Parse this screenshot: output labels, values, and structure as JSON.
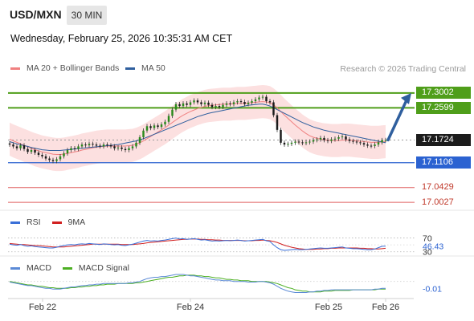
{
  "header": {
    "symbol": "USD/MXN",
    "timeframe": "30 MIN",
    "datetime": "Wednesday, February 25, 2026 10:35:31 AM CET"
  },
  "legend": {
    "ma20_label": "MA 20 + Bollinger Bands",
    "ma20_color": "#f08080",
    "ma50_label": "MA 50",
    "ma50_color": "#2f5f9e",
    "credit": "Research © 2026 Trading Central"
  },
  "rsi_legend": {
    "rsi_label": "RSI",
    "rsi_color": "#3a6fd8",
    "ma_label": "9MA",
    "ma_color": "#d12020"
  },
  "macd_legend": {
    "macd_label": "MACD",
    "macd_color": "#5b8ad6",
    "signal_label": "MACD Signal",
    "signal_color": "#4caf22"
  },
  "chart_data": [
    {
      "type": "candlestick",
      "title": "USD/MXN 30 MIN",
      "x_ticks": [
        "Feb 22",
        "Feb 24",
        "Feb 25",
        "Feb 26"
      ],
      "ylim": [
        16.99,
        17.335
      ],
      "levels": [
        {
          "value": 17.3002,
          "label": "17.3002",
          "color": "#4f9e1a",
          "kind": "resistance"
        },
        {
          "value": 17.2599,
          "label": "17.2599",
          "color": "#4f9e1a",
          "kind": "resistance"
        },
        {
          "value": 17.1724,
          "label": "17.1724",
          "color": "#1c1c1c",
          "kind": "last"
        },
        {
          "value": 17.1106,
          "label": "17.1106",
          "color": "#2b62d1",
          "kind": "support"
        },
        {
          "value": 17.0429,
          "label": "17.0429",
          "color": "#e06060",
          "kind": "support"
        },
        {
          "value": 17.0027,
          "label": "17.0027",
          "color": "#e06060",
          "kind": "support"
        }
      ],
      "close": [
        17.16,
        17.155,
        17.15,
        17.158,
        17.148,
        17.14,
        17.145,
        17.138,
        17.132,
        17.128,
        17.122,
        17.118,
        17.115,
        17.12,
        17.128,
        17.136,
        17.145,
        17.15,
        17.148,
        17.155,
        17.16,
        17.158,
        17.162,
        17.16,
        17.157,
        17.155,
        17.16,
        17.158,
        17.155,
        17.15,
        17.152,
        17.148,
        17.145,
        17.15,
        17.155,
        17.165,
        17.18,
        17.198,
        17.21,
        17.205,
        17.212,
        17.208,
        17.215,
        17.222,
        17.238,
        17.255,
        17.27,
        17.265,
        17.272,
        17.268,
        17.275,
        17.28,
        17.275,
        17.27,
        17.274,
        17.268,
        17.262,
        17.265,
        17.262,
        17.268,
        17.272,
        17.27,
        17.275,
        17.278,
        17.276,
        17.27,
        17.274,
        17.278,
        17.283,
        17.288,
        17.29,
        17.278,
        17.275,
        17.24,
        17.2,
        17.165,
        17.16,
        17.162,
        17.165,
        17.168,
        17.166,
        17.164,
        17.166,
        17.168,
        17.172,
        17.174,
        17.178,
        17.172,
        17.17,
        17.174,
        17.176,
        17.18,
        17.182,
        17.174,
        17.17,
        17.168,
        17.166,
        17.164,
        17.16,
        17.157,
        17.156,
        17.16,
        17.166,
        17.172,
        17.1724
      ],
      "ma20": [
        17.175,
        17.17,
        17.166,
        17.162,
        17.158,
        17.154,
        17.15,
        17.146,
        17.143,
        17.14,
        17.138,
        17.136,
        17.134,
        17.133,
        17.133,
        17.134,
        17.136,
        17.138,
        17.14,
        17.142,
        17.145,
        17.147,
        17.149,
        17.151,
        17.153,
        17.154,
        17.155,
        17.156,
        17.156,
        17.156,
        17.156,
        17.156,
        17.156,
        17.157,
        17.158,
        17.161,
        17.165,
        17.17,
        17.176,
        17.182,
        17.188,
        17.194,
        17.2,
        17.206,
        17.213,
        17.22,
        17.227,
        17.234,
        17.24,
        17.245,
        17.25,
        17.254,
        17.258,
        17.261,
        17.264,
        17.266,
        17.267,
        17.268,
        17.269,
        17.27,
        17.27,
        17.27,
        17.271,
        17.272,
        17.272,
        17.272,
        17.273,
        17.274,
        17.275,
        17.276,
        17.277,
        17.276,
        17.274,
        17.268,
        17.26,
        17.25,
        17.24,
        17.231,
        17.222,
        17.213,
        17.205,
        17.197,
        17.19,
        17.184,
        17.18,
        17.177,
        17.175,
        17.173,
        17.172,
        17.171,
        17.171,
        17.171,
        17.172,
        17.172,
        17.172,
        17.171,
        17.17,
        17.169,
        17.168,
        17.167,
        17.166,
        17.166,
        17.166,
        17.167,
        17.168
      ],
      "ma50": [
        17.168,
        17.165,
        17.162,
        17.16,
        17.157,
        17.155,
        17.152,
        17.15,
        17.148,
        17.146,
        17.145,
        17.144,
        17.144,
        17.144,
        17.144,
        17.145,
        17.146,
        17.147,
        17.148,
        17.149,
        17.15,
        17.151,
        17.152,
        17.153,
        17.154,
        17.155,
        17.156,
        17.157,
        17.158,
        17.159,
        17.16,
        17.162,
        17.164,
        17.166,
        17.168,
        17.17,
        17.173,
        17.176,
        17.18,
        17.184,
        17.188,
        17.192,
        17.196,
        17.2,
        17.204,
        17.208,
        17.212,
        17.216,
        17.22,
        17.224,
        17.228,
        17.232,
        17.236,
        17.239,
        17.242,
        17.245,
        17.247,
        17.249,
        17.251,
        17.253,
        17.255,
        17.257,
        17.259,
        17.261,
        17.263,
        17.265,
        17.267,
        17.268,
        17.269,
        17.27,
        17.27,
        17.268,
        17.265,
        17.26,
        17.255,
        17.25,
        17.245,
        17.24,
        17.235,
        17.23,
        17.225,
        17.22,
        17.216,
        17.212,
        17.208,
        17.205,
        17.202,
        17.199,
        17.197,
        17.195,
        17.193,
        17.191,
        17.189,
        17.187,
        17.185,
        17.183,
        17.181,
        17.179,
        17.177,
        17.175,
        17.173,
        17.171,
        17.169,
        17.167,
        17.165
      ],
      "forecast_arrow_to": 17.3002
    },
    {
      "type": "line",
      "title": "RSI",
      "ref_levels": [
        70,
        30
      ],
      "ylim": [
        20,
        90
      ],
      "last_value": "46.43",
      "series": [
        {
          "name": "RSI",
          "values": [
            52,
            50,
            49,
            51,
            48,
            46,
            47,
            45,
            44,
            43,
            42,
            41,
            41,
            43,
            46,
            48,
            50,
            51,
            50,
            52,
            53,
            52,
            54,
            53,
            52,
            51,
            53,
            52,
            51,
            50,
            51,
            49,
            48,
            50,
            52,
            55,
            58,
            61,
            63,
            61,
            62,
            61,
            63,
            64,
            66,
            68,
            70,
            67,
            68,
            66,
            67,
            68,
            66,
            64,
            65,
            63,
            61,
            62,
            61,
            62,
            63,
            62,
            63,
            64,
            63,
            61,
            62,
            63,
            64,
            65,
            66,
            62,
            60,
            50,
            42,
            36,
            34,
            35,
            36,
            37,
            36,
            36,
            37,
            38,
            39,
            40,
            41,
            40,
            40,
            41,
            42,
            43,
            44,
            41,
            40,
            39,
            39,
            38,
            37,
            36,
            36,
            38,
            42,
            46,
            46.43
          ]
        },
        {
          "name": "9MA",
          "values": [
            54,
            53,
            52,
            51,
            51,
            50,
            49,
            48,
            48,
            47,
            46,
            45,
            44,
            44,
            44,
            44,
            45,
            46,
            47,
            48,
            49,
            50,
            51,
            52,
            52,
            52,
            52,
            52,
            52,
            52,
            52,
            51,
            51,
            51,
            51,
            52,
            53,
            54,
            56,
            57,
            58,
            59,
            60,
            61,
            62,
            63,
            64,
            65,
            66,
            66,
            67,
            67,
            67,
            66,
            66,
            65,
            65,
            64,
            64,
            63,
            63,
            63,
            63,
            63,
            63,
            62,
            62,
            62,
            63,
            63,
            64,
            63,
            62,
            60,
            57,
            53,
            49,
            46,
            43,
            41,
            39,
            38,
            37,
            37,
            37,
            38,
            38,
            39,
            39,
            40,
            40,
            41,
            41,
            41,
            41,
            41,
            41,
            40,
            40,
            39,
            39,
            38,
            38,
            39,
            40
          ]
        }
      ]
    },
    {
      "type": "line",
      "title": "MACD",
      "ylim": [
        -0.02,
        0.01
      ],
      "last_value": "-0.01",
      "series": [
        {
          "name": "MACD",
          "values": [
            -0.001,
            -0.002,
            -0.003,
            -0.004,
            -0.005,
            -0.006,
            -0.006,
            -0.007,
            -0.008,
            -0.009,
            -0.01,
            -0.01,
            -0.011,
            -0.011,
            -0.011,
            -0.01,
            -0.009,
            -0.008,
            -0.008,
            -0.007,
            -0.006,
            -0.006,
            -0.005,
            -0.005,
            -0.004,
            -0.004,
            -0.003,
            -0.003,
            -0.003,
            -0.003,
            -0.003,
            -0.003,
            -0.003,
            -0.002,
            -0.002,
            -0.001,
            0.0,
            0.002,
            0.004,
            0.005,
            0.006,
            0.006,
            0.007,
            0.007,
            0.008,
            0.009,
            0.01,
            0.01,
            0.01,
            0.009,
            0.008,
            0.008,
            0.007,
            0.006,
            0.005,
            0.004,
            0.003,
            0.002,
            0.002,
            0.001,
            0.001,
            0.001,
            0.0,
            0.0,
            0.0,
            0.0,
            -0.001,
            -0.001,
            -0.001,
            0.0,
            0.0,
            -0.001,
            -0.002,
            -0.004,
            -0.007,
            -0.01,
            -0.012,
            -0.014,
            -0.015,
            -0.016,
            -0.016,
            -0.016,
            -0.016,
            -0.015,
            -0.015,
            -0.014,
            -0.014,
            -0.013,
            -0.013,
            -0.012,
            -0.012,
            -0.012,
            -0.012,
            -0.012,
            -0.012,
            -0.012,
            -0.012,
            -0.012,
            -0.012,
            -0.012,
            -0.012,
            -0.011,
            -0.011,
            -0.01,
            -0.01
          ]
        },
        {
          "name": "MACD Signal",
          "values": [
            0.0,
            -0.001,
            -0.002,
            -0.003,
            -0.004,
            -0.005,
            -0.005,
            -0.006,
            -0.007,
            -0.007,
            -0.008,
            -0.009,
            -0.009,
            -0.01,
            -0.01,
            -0.01,
            -0.01,
            -0.009,
            -0.009,
            -0.008,
            -0.008,
            -0.007,
            -0.007,
            -0.006,
            -0.006,
            -0.005,
            -0.005,
            -0.004,
            -0.004,
            -0.004,
            -0.003,
            -0.003,
            -0.003,
            -0.003,
            -0.003,
            -0.002,
            -0.002,
            -0.001,
            0.0,
            0.001,
            0.002,
            0.003,
            0.004,
            0.005,
            0.006,
            0.006,
            0.007,
            0.008,
            0.008,
            0.009,
            0.009,
            0.009,
            0.008,
            0.008,
            0.007,
            0.007,
            0.006,
            0.005,
            0.005,
            0.004,
            0.003,
            0.003,
            0.002,
            0.002,
            0.001,
            0.001,
            0.001,
            0.0,
            0.0,
            0.0,
            0.0,
            0.0,
            -0.001,
            -0.002,
            -0.003,
            -0.005,
            -0.007,
            -0.009,
            -0.01,
            -0.012,
            -0.013,
            -0.014,
            -0.014,
            -0.015,
            -0.015,
            -0.015,
            -0.015,
            -0.014,
            -0.014,
            -0.014,
            -0.013,
            -0.013,
            -0.013,
            -0.013,
            -0.013,
            -0.012,
            -0.012,
            -0.012,
            -0.012,
            -0.012,
            -0.012,
            -0.012,
            -0.011,
            -0.011,
            -0.011
          ]
        }
      ]
    }
  ]
}
